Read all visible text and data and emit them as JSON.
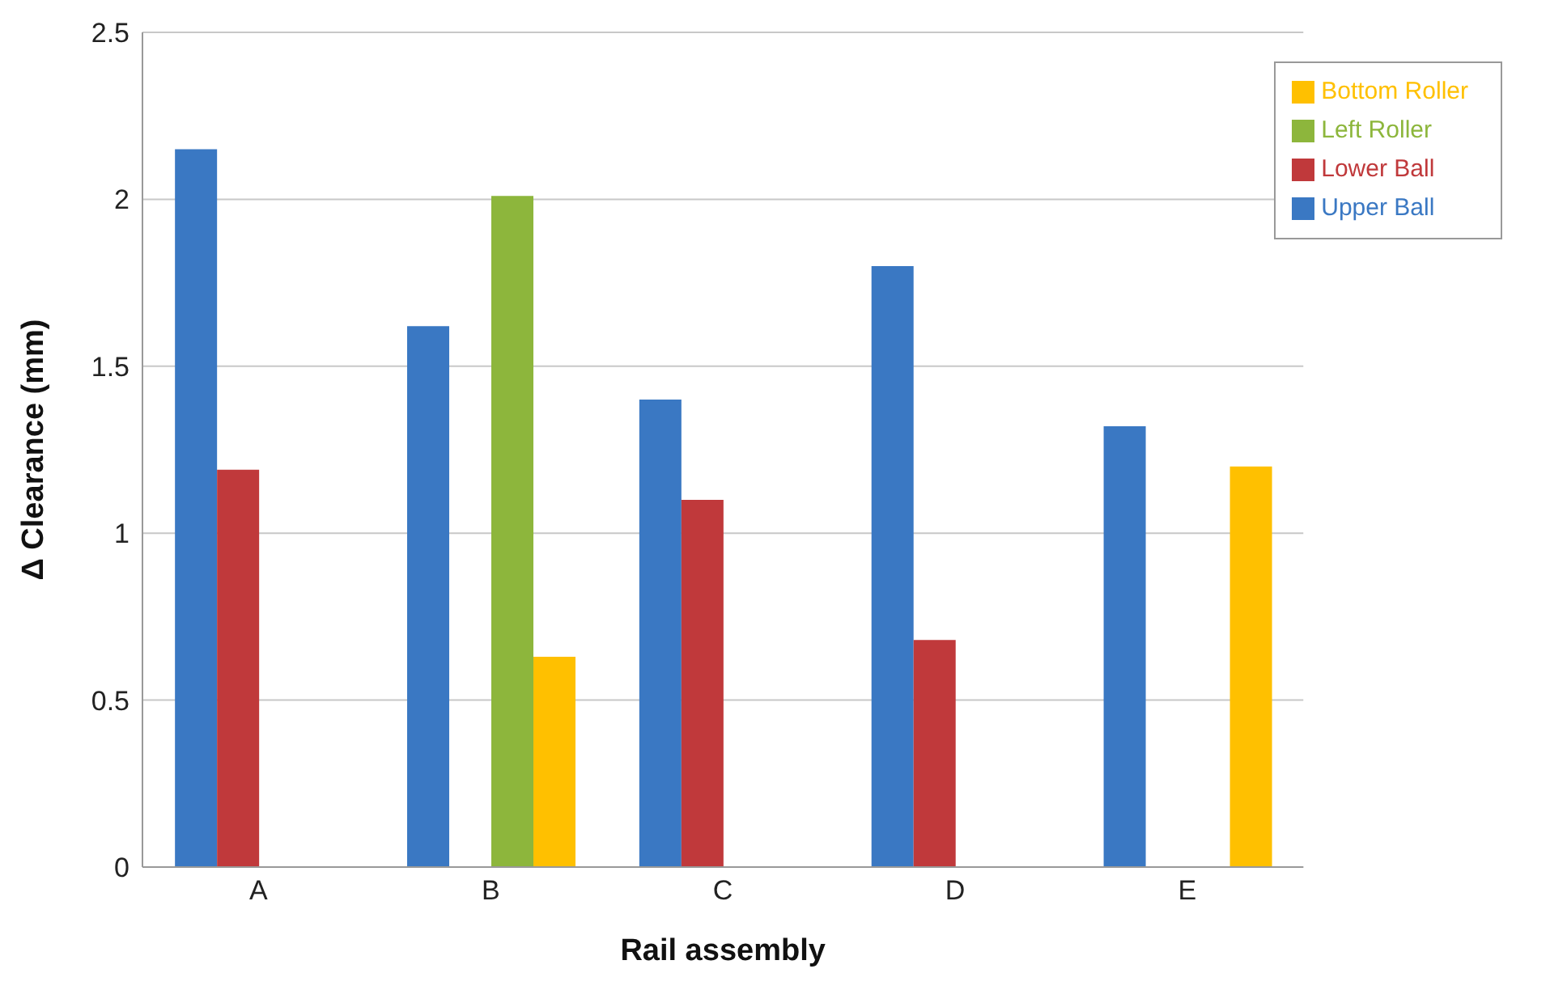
{
  "chart_data": {
    "type": "bar",
    "xlabel": "Rail assembly",
    "ylabel": "Δ Clearance (mm)",
    "categories": [
      "A",
      "B",
      "C",
      "D",
      "E"
    ],
    "series": [
      {
        "name": "Upper Ball",
        "color": "#3a78c3",
        "values": [
          2.15,
          1.62,
          1.4,
          1.8,
          1.32
        ]
      },
      {
        "name": "Lower Ball",
        "color": "#c0393b",
        "values": [
          1.19,
          null,
          1.1,
          0.68,
          null
        ]
      },
      {
        "name": "Left Roller",
        "color": "#8db63c",
        "values": [
          null,
          2.01,
          null,
          null,
          null
        ]
      },
      {
        "name": "Bottom Roller",
        "color": "#ffc000",
        "values": [
          null,
          0.63,
          null,
          null,
          1.2
        ]
      }
    ],
    "ylim": [
      0,
      2.5
    ],
    "yticks": [
      0,
      0.5,
      1,
      1.5,
      2,
      2.5
    ],
    "grid": "y",
    "legend": "top right"
  }
}
